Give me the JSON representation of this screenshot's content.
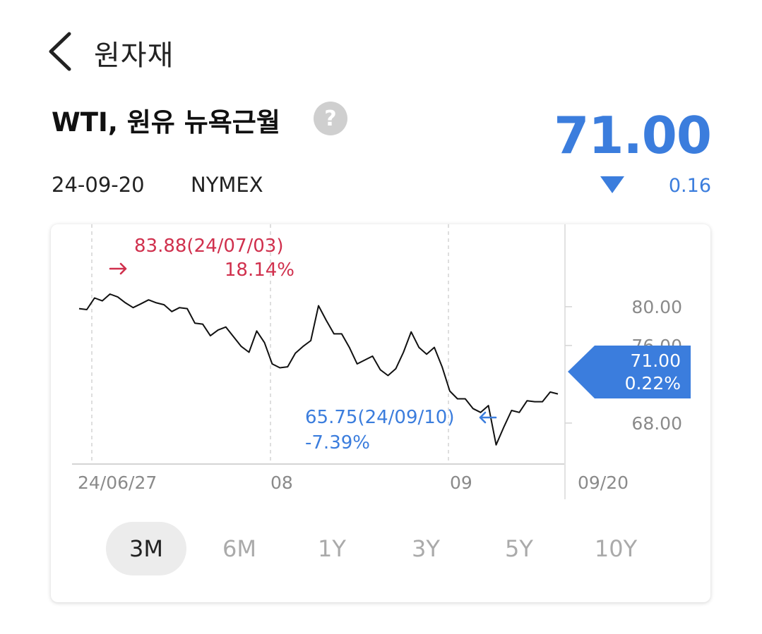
{
  "header": {
    "title": "원자재"
  },
  "instrument": {
    "name": "WTI, 원유 뉴욕근월",
    "help_symbol": "?",
    "price": "71.00",
    "change": "0.16",
    "direction": "down",
    "date": "24-09-20",
    "exchange": "NYMEX"
  },
  "colors": {
    "accent": "#3b7ddd",
    "high": "#d0304d",
    "line": "#111111"
  },
  "chart_data": {
    "type": "line",
    "x_tick_labels": [
      "24/06/27",
      "08",
      "09",
      "09/20"
    ],
    "y_tick_labels": [
      "80.00",
      "76.00",
      "68.00"
    ],
    "ylim": [
      64.5,
      84.5
    ],
    "values": [
      79.8,
      79.7,
      80.9,
      80.6,
      81.3,
      81.0,
      80.4,
      79.9,
      80.3,
      80.7,
      80.4,
      80.2,
      79.5,
      79.9,
      79.8,
      78.3,
      78.2,
      77.0,
      77.6,
      77.9,
      76.9,
      75.9,
      75.3,
      77.5,
      76.3,
      74.1,
      73.7,
      73.8,
      75.2,
      75.9,
      76.5,
      80.1,
      78.6,
      77.2,
      77.2,
      75.8,
      74.1,
      74.5,
      74.9,
      73.5,
      72.9,
      73.6,
      75.3,
      77.4,
      75.8,
      75.1,
      75.8,
      73.8,
      71.3,
      70.5,
      70.5,
      69.5,
      69.1,
      69.8,
      65.75,
      67.6,
      69.3,
      69.1,
      70.3,
      70.2,
      70.2,
      71.2,
      71.0
    ],
    "high": {
      "label": "83.88(24/07/03)",
      "pct": "18.14%"
    },
    "low": {
      "label": "65.75(24/09/10)",
      "pct": "-7.39%"
    },
    "current": {
      "value": "71.00",
      "pct": "0.22%"
    },
    "grid": true
  },
  "ranges": [
    "3M",
    "6M",
    "1Y",
    "3Y",
    "5Y",
    "10Y"
  ],
  "active_range": "3M"
}
